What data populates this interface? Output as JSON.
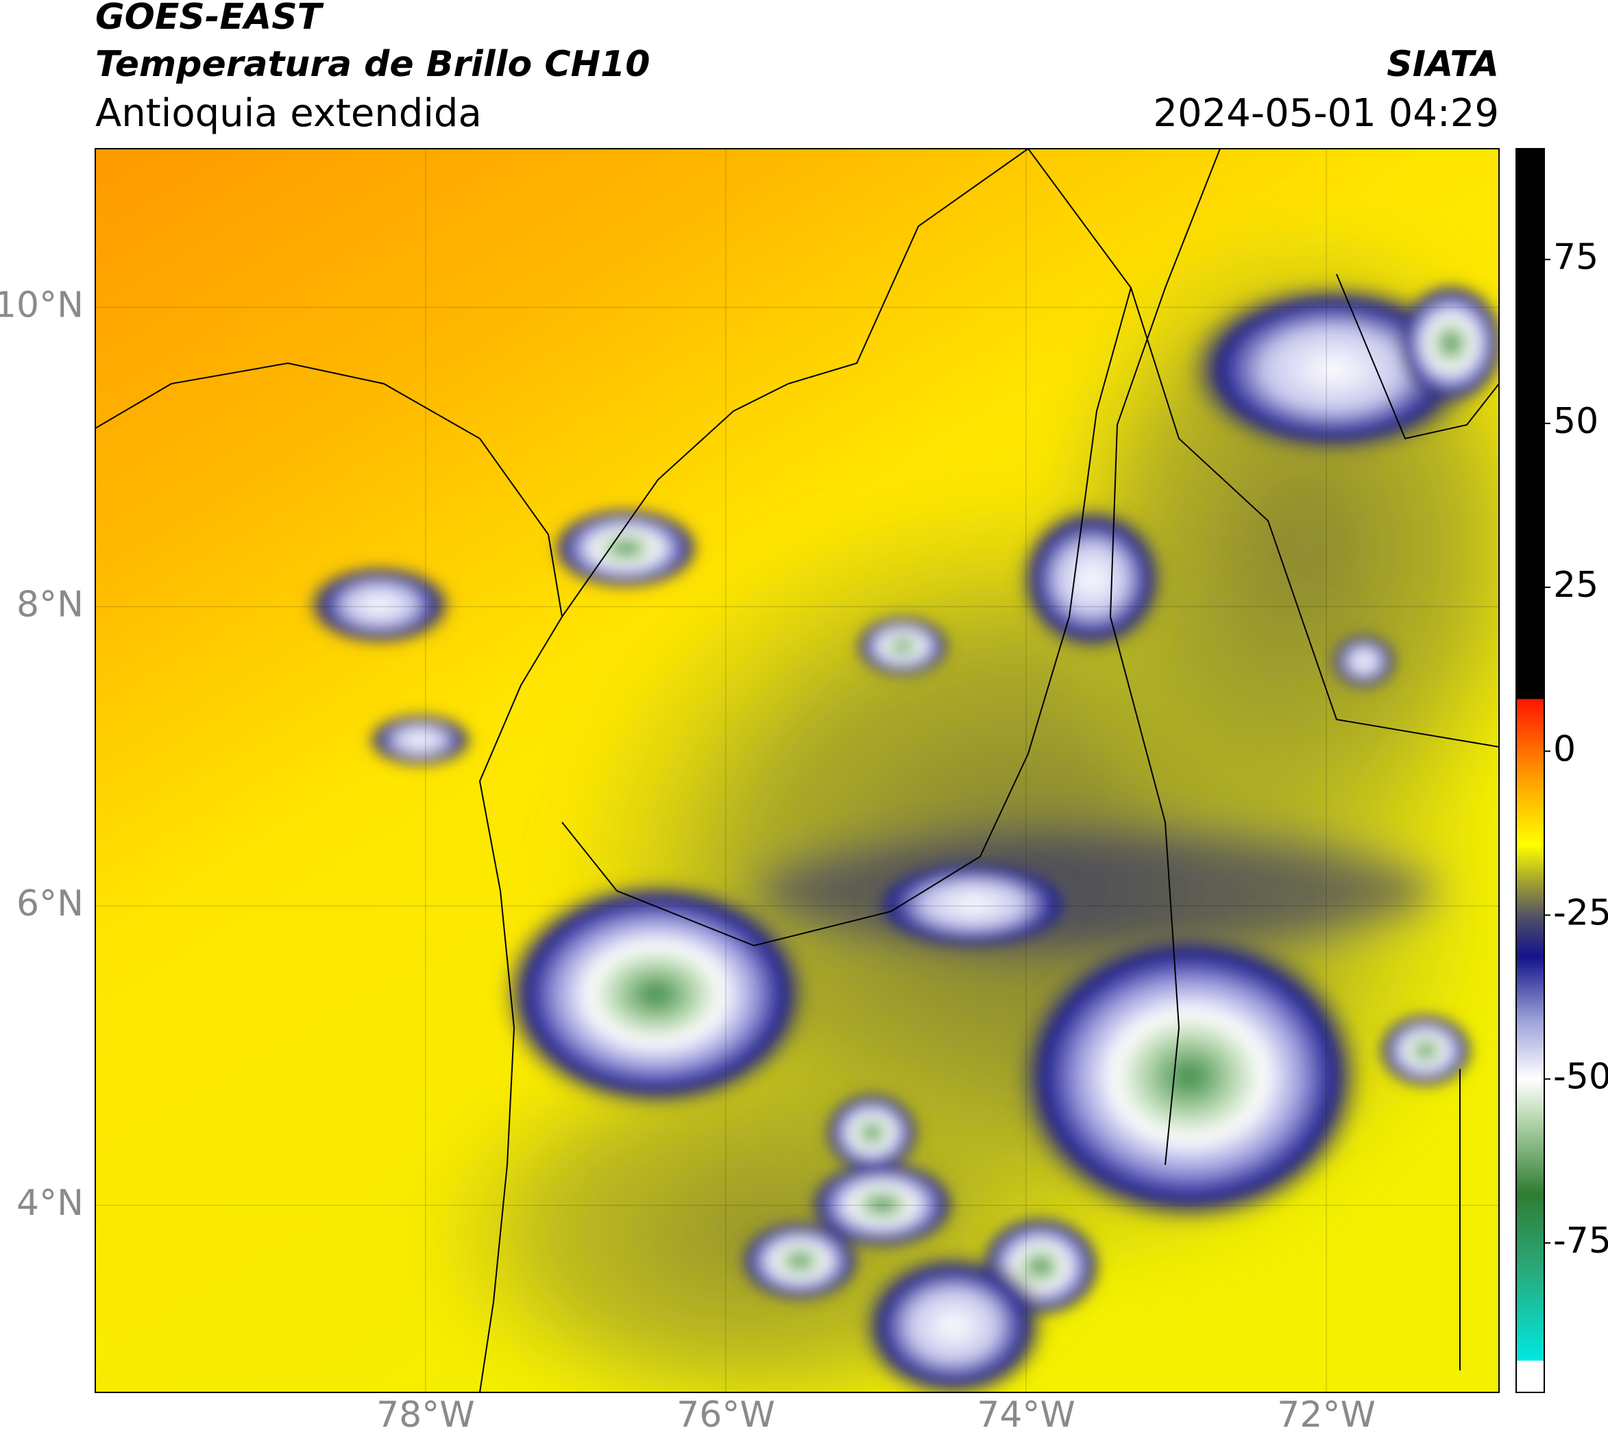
{
  "header": {
    "title": "GOES-EAST",
    "subtitle": "Temperatura de Brillo CH10",
    "region": "Antioquia extendida",
    "source": "SIATA",
    "datetime": "2024-05-01 04:29"
  },
  "map": {
    "xlim": [
      -80.2,
      -70.85
    ],
    "ylim": [
      2.75,
      11.06
    ],
    "xticks": [
      {
        "value": -78,
        "label": "78°W"
      },
      {
        "value": -76,
        "label": "76°W"
      },
      {
        "value": -74,
        "label": "74°W"
      },
      {
        "value": -72,
        "label": "72°W"
      }
    ],
    "yticks": [
      {
        "value": 10,
        "label": "10°N"
      },
      {
        "value": 8,
        "label": "8°N"
      },
      {
        "value": 6,
        "label": "6°N"
      },
      {
        "value": 4,
        "label": "4°N"
      }
    ]
  },
  "colorbar": {
    "lim": [
      -97.8,
      91.9
    ],
    "ticks": [
      75,
      50,
      25,
      0,
      -25,
      -50,
      -75
    ]
  }
}
